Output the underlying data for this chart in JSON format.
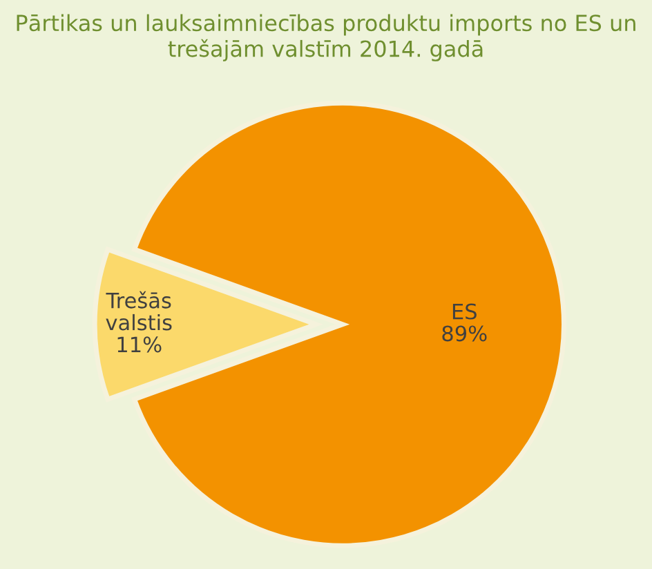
{
  "chart_data": {
    "type": "pie",
    "title": "Pārtikas un lauksaimniecības produktu imports no ES un trešajām valstīm 2014. gadā",
    "categories": [
      "Trešās valstis",
      "ES"
    ],
    "values": [
      11,
      89
    ],
    "colors": [
      "#fbd96b",
      "#f39200"
    ],
    "value_labels": [
      "11%",
      "89%"
    ]
  }
}
